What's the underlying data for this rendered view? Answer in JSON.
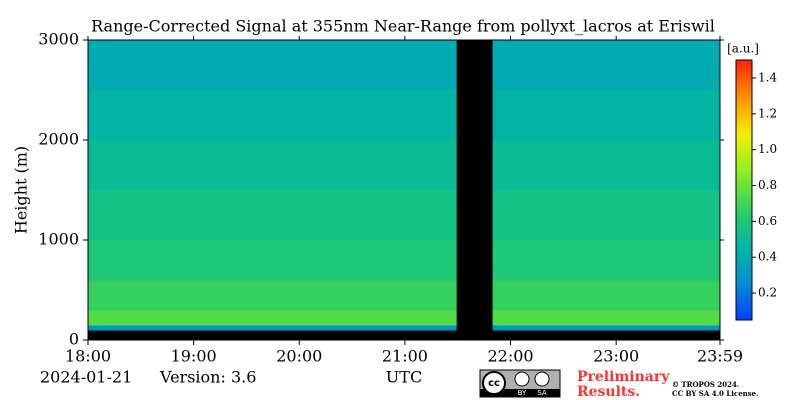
{
  "chart_data": {
    "type": "heatmap",
    "title": "Range-Corrected Signal at 355nm Near-Range from pollyxt_lacros at Eriswil",
    "ylabel": "Height (m)",
    "xlabel": "UTC",
    "x_bins": [
      18,
      21.49,
      21.83,
      23.983
    ],
    "y_bins": [
      0,
      100,
      150,
      300,
      600,
      1000,
      1500,
      2000,
      2500,
      3000
    ],
    "values": [
      [
        null,
        null,
        null
      ],
      [
        0.3,
        null,
        0.3
      ],
      [
        0.75,
        null,
        0.75
      ],
      [
        0.68,
        null,
        0.68
      ],
      [
        0.6,
        null,
        0.6
      ],
      [
        0.55,
        null,
        0.55
      ],
      [
        0.5,
        null,
        0.5
      ],
      [
        0.45,
        null,
        0.45
      ],
      [
        0.4,
        null,
        0.4
      ]
    ],
    "missing_color": "#000000",
    "xlim": [
      18,
      23.983
    ],
    "xticks": [
      {
        "value": 18,
        "label": "18:00"
      },
      {
        "value": 19,
        "label": "19:00"
      },
      {
        "value": 20,
        "label": "20:00"
      },
      {
        "value": 21,
        "label": "21:00"
      },
      {
        "value": 22,
        "label": "22:00"
      },
      {
        "value": 23,
        "label": "23:00"
      },
      {
        "value": 23.983,
        "label": "23:59"
      }
    ],
    "ylim": [
      0,
      3000
    ],
    "yticks": [
      0,
      1000,
      2000,
      3000
    ],
    "colorbar": {
      "label": "[a.u.]",
      "clim": [
        0.05,
        1.5
      ],
      "ticks": [
        0.2,
        0.4,
        0.6,
        0.8,
        1.0,
        1.2,
        1.4
      ]
    },
    "colormap": [
      "#0040ff",
      "#0090d0",
      "#00b8a0",
      "#30d060",
      "#90f020",
      "#f0f000",
      "#ff9000",
      "#ff2000"
    ]
  },
  "footer": {
    "date": "2024-01-21",
    "version": "Version: 3.6",
    "badge": [
      "cc",
      "BY",
      "SA"
    ],
    "preliminary": [
      "Preliminary",
      "Results."
    ],
    "copyright": [
      "© TROPOS 2024.",
      "CC BY SA 4.0 License."
    ]
  }
}
